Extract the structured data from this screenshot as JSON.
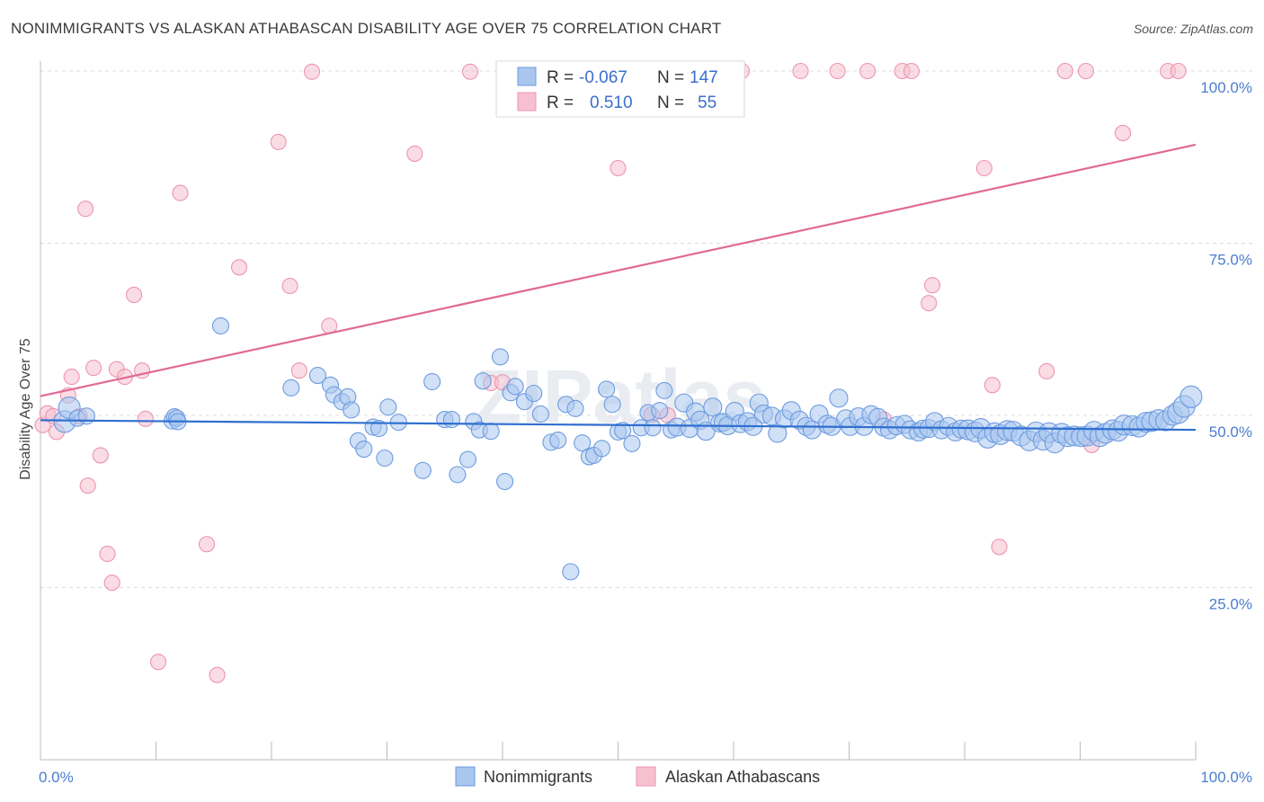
{
  "header": {
    "title": "NONIMMIGRANTS VS ALASKAN ATHABASCAN DISABILITY AGE OVER 75 CORRELATION CHART",
    "source": "Source: ZipAtlas.com"
  },
  "watermark": "ZIPatlas",
  "colors": {
    "blue_fill": "#a9c6ee",
    "blue_stroke": "#6d9be0",
    "blue_line": "#2f6fcf",
    "pink_fill": "#f6c0d0",
    "pink_stroke": "#ee94b0",
    "pink_line": "#e06a93",
    "axis_label": "#4a7ed0",
    "grid": "#dcdcdc"
  },
  "legend": {
    "rows": [
      {
        "r_label": "R =",
        "r_value": "-0.067",
        "n_label": "N =",
        "n_value": "147"
      },
      {
        "r_label": "R =",
        "r_value": "0.510",
        "n_label": "N =",
        "n_value": "55"
      }
    ]
  },
  "chart_data": {
    "type": "scatter",
    "title": "NONIMMIGRANTS VS ALASKAN ATHABASCAN DISABILITY AGE OVER 75 CORRELATION CHART",
    "xlabel": "",
    "ylabel": "Disability Age Over 75",
    "xlim": [
      0,
      100
    ],
    "ylim": [
      0,
      100
    ],
    "x_tick_labels": [
      "0.0%",
      "100.0%"
    ],
    "y_tick_labels": [
      "25.0%",
      "50.0%",
      "75.0%",
      "100.0%"
    ],
    "y_ticks": [
      25,
      50,
      75,
      100
    ],
    "grid": true,
    "legend_position": "top-center",
    "series": [
      {
        "name": "Nonimmigrants",
        "color": "#a9c6ee",
        "R": -0.067,
        "N": 147,
        "trend": [
          [
            0,
            49.3
          ],
          [
            100,
            47.9
          ]
        ],
        "points": [
          [
            11.4,
            49.2
          ],
          [
            11.6,
            49.8
          ],
          [
            11.8,
            49.6
          ],
          [
            11.9,
            49.1
          ],
          [
            15.6,
            63.0
          ],
          [
            21.7,
            54.0
          ],
          [
            24,
            55.8
          ],
          [
            25.1,
            54.4
          ],
          [
            25.4,
            53
          ],
          [
            26.1,
            52
          ],
          [
            26.6,
            52.7
          ],
          [
            26.9,
            50.8
          ],
          [
            27.5,
            46.3
          ],
          [
            28.0,
            45.1
          ],
          [
            28.8,
            48.3
          ],
          [
            29.3,
            48.1
          ],
          [
            29.8,
            43.8
          ],
          [
            30.1,
            51.2
          ],
          [
            31,
            49
          ],
          [
            33.1,
            42
          ],
          [
            33.9,
            54.9
          ],
          [
            35.0,
            49.4
          ],
          [
            35.6,
            49.4
          ],
          [
            36.1,
            41.4
          ],
          [
            37.0,
            43.6
          ],
          [
            37.5,
            49.1
          ],
          [
            38.0,
            47.9
          ],
          [
            38.3,
            55
          ],
          [
            39.0,
            47.7
          ],
          [
            39.8,
            58.5
          ],
          [
            40.2,
            40.4
          ],
          [
            40.7,
            53.3
          ],
          [
            41.1,
            54.2
          ],
          [
            41.9,
            52.0
          ],
          [
            42.7,
            53.2
          ],
          [
            43.3,
            50.2
          ],
          [
            44.2,
            46.1
          ],
          [
            44.8,
            46.4
          ],
          [
            45.5,
            51.6
          ],
          [
            45.9,
            27.3
          ],
          [
            46.3,
            51
          ],
          [
            46.9,
            46
          ],
          [
            47.5,
            44
          ],
          [
            47.9,
            44.2
          ],
          [
            48.6,
            45.2
          ],
          [
            49.0,
            53.8
          ],
          [
            49.5,
            51.6
          ],
          [
            50.0,
            47.6
          ],
          [
            50.4,
            47.8
          ],
          [
            51.2,
            45.9
          ],
          [
            52.0,
            48.2
          ],
          [
            52.6,
            50.4
          ],
          [
            53.0,
            48.2
          ],
          [
            53.6,
            50.7
          ],
          [
            54.0,
            53.6
          ],
          [
            54.6,
            47.9
          ],
          [
            55.1,
            48.3
          ],
          [
            55.7,
            51.8
          ],
          [
            56.2,
            48.1
          ],
          [
            56.7,
            50.5
          ],
          [
            57.1,
            49.3
          ],
          [
            57.6,
            47.7
          ],
          [
            58.2,
            51.2
          ],
          [
            58.8,
            48.9
          ],
          [
            59.1,
            49.0
          ],
          [
            59.5,
            48.5
          ],
          [
            60.1,
            50.6
          ],
          [
            60.6,
            48.8
          ],
          [
            61.2,
            49.1
          ],
          [
            61.7,
            48.4
          ],
          [
            62.2,
            51.8
          ],
          [
            62.6,
            50.2
          ],
          [
            63.3,
            49.9
          ],
          [
            63.8,
            47.4
          ],
          [
            64.4,
            49.5
          ],
          [
            65.0,
            50.7
          ],
          [
            65.7,
            49.3
          ],
          [
            66.3,
            48.4
          ],
          [
            66.8,
            47.9
          ],
          [
            67.4,
            50.2
          ],
          [
            68.1,
            48.7
          ],
          [
            68.5,
            48.4
          ],
          [
            69.1,
            52.5
          ],
          [
            69.7,
            49.5
          ],
          [
            70.1,
            48.4
          ],
          [
            70.8,
            49.8
          ],
          [
            71.3,
            48.4
          ],
          [
            71.9,
            50.1
          ],
          [
            72.5,
            49.7
          ],
          [
            73.0,
            48.3
          ],
          [
            73.5,
            47.9
          ],
          [
            74.1,
            48.5
          ],
          [
            74.8,
            48.7
          ],
          [
            75.3,
            47.9
          ],
          [
            76.0,
            47.6
          ],
          [
            76.4,
            48.0
          ],
          [
            76.9,
            48.1
          ],
          [
            77.4,
            49.1
          ],
          [
            78.0,
            47.9
          ],
          [
            78.6,
            48.4
          ],
          [
            79.2,
            47.6
          ],
          [
            79.7,
            48.0
          ],
          [
            80.3,
            47.9
          ],
          [
            80.9,
            47.6
          ],
          [
            81.4,
            48.1
          ],
          [
            82.0,
            46.7
          ],
          [
            82.6,
            47.5
          ],
          [
            83.1,
            47.2
          ],
          [
            83.7,
            47.8
          ],
          [
            84.2,
            47.7
          ],
          [
            84.9,
            47.0
          ],
          [
            85.6,
            46.3
          ],
          [
            86.2,
            47.6
          ],
          [
            86.8,
            46.4
          ],
          [
            87.3,
            47.5
          ],
          [
            87.8,
            46.0
          ],
          [
            88.4,
            47.4
          ],
          [
            88.9,
            46.9
          ],
          [
            89.5,
            47.0
          ],
          [
            90.1,
            46.9
          ],
          [
            90.6,
            47.0
          ],
          [
            91.2,
            47.7
          ],
          [
            91.7,
            46.9
          ],
          [
            92.2,
            47.4
          ],
          [
            92.8,
            47.9
          ],
          [
            93.3,
            47.7
          ],
          [
            93.8,
            48.6
          ],
          [
            94.5,
            48.5
          ],
          [
            95.1,
            48.3
          ],
          [
            95.7,
            49.0
          ],
          [
            96.2,
            49.1
          ],
          [
            96.8,
            49.4
          ],
          [
            97.4,
            49.2
          ],
          [
            98.0,
            50.0
          ],
          [
            98.5,
            50.4
          ],
          [
            99.0,
            51.3
          ],
          [
            99.6,
            52.7
          ],
          [
            2.1,
            49.1
          ],
          [
            2.5,
            51.1
          ],
          [
            3.2,
            49.6
          ],
          [
            4.0,
            49.9
          ]
        ]
      },
      {
        "name": "Alaskan Athabascans",
        "color": "#f6c0d0",
        "R": 0.51,
        "N": 55,
        "trend": [
          [
            0,
            52.8
          ],
          [
            100,
            89.3
          ]
        ],
        "points": [
          [
            0.2,
            48.6
          ],
          [
            0.6,
            50.3
          ],
          [
            1.1,
            49.9
          ],
          [
            1.4,
            47.6
          ],
          [
            2.4,
            52.9
          ],
          [
            2.7,
            55.6
          ],
          [
            3.4,
            49.9
          ],
          [
            3.9,
            80.0
          ],
          [
            4.1,
            39.8
          ],
          [
            4.6,
            56.9
          ],
          [
            5.2,
            44.2
          ],
          [
            5.8,
            29.9
          ],
          [
            6.2,
            25.7
          ],
          [
            6.6,
            56.7
          ],
          [
            7.3,
            55.6
          ],
          [
            8.1,
            67.5
          ],
          [
            8.8,
            56.5
          ],
          [
            9.1,
            49.5
          ],
          [
            10.2,
            14.2
          ],
          [
            12.1,
            82.3
          ],
          [
            14.4,
            31.3
          ],
          [
            15.3,
            12.3
          ],
          [
            17.2,
            71.5
          ],
          [
            20.6,
            89.7
          ],
          [
            21.6,
            68.8
          ],
          [
            22.4,
            56.5
          ],
          [
            23.5,
            99.9
          ],
          [
            25.0,
            63.0
          ],
          [
            32.4,
            88.0
          ],
          [
            37.2,
            99.9
          ],
          [
            39.0,
            54.7
          ],
          [
            40.0,
            54.8
          ],
          [
            42.4,
            100.0
          ],
          [
            50.0,
            85.9
          ],
          [
            52.9,
            50.1
          ],
          [
            54.3,
            50.0
          ],
          [
            60.7,
            100.0
          ],
          [
            65.8,
            100.0
          ],
          [
            69.0,
            100.0
          ],
          [
            71.6,
            100.0
          ],
          [
            73.0,
            49.4
          ],
          [
            74.6,
            100.0
          ],
          [
            75.4,
            100.0
          ],
          [
            76.9,
            66.3
          ],
          [
            77.2,
            68.9
          ],
          [
            81.7,
            85.9
          ],
          [
            82.4,
            54.4
          ],
          [
            83.0,
            30.9
          ],
          [
            87.1,
            56.4
          ],
          [
            88.7,
            100.0
          ],
          [
            90.5,
            100.0
          ],
          [
            91.0,
            45.7
          ],
          [
            93.7,
            91.0
          ],
          [
            97.6,
            100.0
          ],
          [
            98.5,
            100.0
          ]
        ]
      }
    ]
  }
}
